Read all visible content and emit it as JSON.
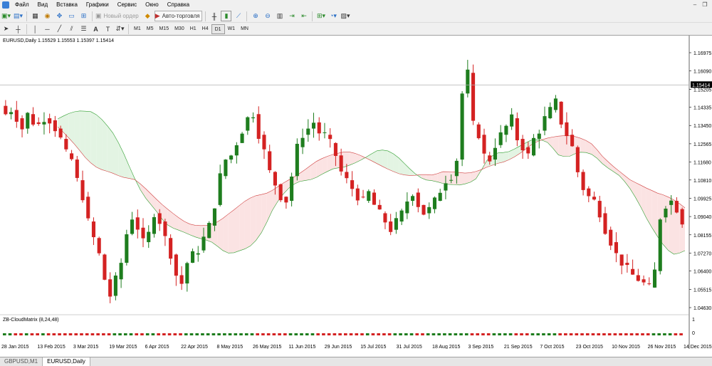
{
  "menu": [
    "Файл",
    "Вид",
    "Вставка",
    "Графики",
    "Сервис",
    "Окно",
    "Справка"
  ],
  "toolbar": {
    "new_order_label": "Новый ордер",
    "auto_trading_label": "Авто-торговля",
    "timeframes": [
      "M1",
      "M5",
      "M15",
      "M30",
      "H1",
      "H4",
      "D1",
      "W1",
      "MN"
    ],
    "active_timeframe": "D1"
  },
  "chart": {
    "symbol_header": "EURUSD,Daily  1.15529 1.15553 1.15397 1.15414",
    "current_price_label": "1.15414",
    "indicator_label": "ZB-CloudMatrix (8,24,48)",
    "indicator_scale_top": "1",
    "indicator_scale_bottom": "0",
    "colors": {
      "bull": "#1e7d1e",
      "bear": "#d42222",
      "cloud_green": "#2f9e2f",
      "cloud_red": "#d04040",
      "grid": "#e0e0e0"
    }
  },
  "chart_data": {
    "type": "candlestick",
    "title": "EURUSD,Daily",
    "ohlc_header": {
      "open": 1.15529,
      "high": 1.15553,
      "low": 1.15397,
      "close": 1.15414
    },
    "y_ticks": [
      1.16975,
      1.1609,
      1.15205,
      1.14335,
      1.1345,
      1.12565,
      1.1168,
      1.1081,
      1.09925,
      1.0904,
      1.08155,
      1.0727,
      1.064,
      1.05515,
      1.0463
    ],
    "x_ticks": [
      "28 Jan 2015",
      "13 Feb 2015",
      "3 Mar 2015",
      "19 Mar 2015",
      "6 Apr 2015",
      "22 Apr 2015",
      "8 May 2015",
      "26 May 2015",
      "11 Jun 2015",
      "29 Jun 2015",
      "15 Jul 2015",
      "31 Jul 2015",
      "18 Aug 2015",
      "3 Sep 2015",
      "21 Sep 2015",
      "7 Oct 2015",
      "23 Oct 2015",
      "10 Nov 2015",
      "26 Nov 2015",
      "14 Dec 2015"
    ],
    "close_path": [
      1.14,
      1.142,
      1.138,
      1.133,
      1.14,
      1.136,
      1.135,
      1.138,
      1.137,
      1.133,
      1.128,
      1.121,
      1.118,
      1.108,
      1.1,
      1.088,
      1.08,
      1.072,
      1.06,
      1.052,
      1.06,
      1.068,
      1.082,
      1.09,
      1.085,
      1.078,
      1.082,
      1.092,
      1.088,
      1.08,
      1.072,
      1.062,
      1.058,
      1.068,
      1.072,
      1.074,
      1.08,
      1.086,
      1.096,
      1.11,
      1.118,
      1.12,
      1.126,
      1.132,
      1.138,
      1.14,
      1.13,
      1.122,
      1.112,
      1.106,
      1.1,
      1.098,
      1.11,
      1.124,
      1.13,
      1.133,
      1.136,
      1.131,
      1.13,
      1.126,
      1.12,
      1.112,
      1.108,
      1.104,
      1.1,
      1.098,
      1.102,
      1.096,
      1.092,
      1.088,
      1.084,
      1.088,
      1.092,
      1.098,
      1.102,
      1.096,
      1.092,
      1.094,
      1.098,
      1.103,
      1.108,
      1.11,
      1.118,
      1.15,
      1.16,
      1.135,
      1.13,
      1.12,
      1.118,
      1.125,
      1.13,
      1.134,
      1.138,
      1.128,
      1.124,
      1.12,
      1.128,
      1.132,
      1.138,
      1.142,
      1.146,
      1.136,
      1.13,
      1.124,
      1.112,
      1.104,
      1.1,
      1.098,
      1.092,
      1.084,
      1.078,
      1.072,
      1.068,
      1.065,
      1.062,
      1.06,
      1.058,
      1.056,
      1.064,
      1.09,
      1.096,
      1.098,
      1.094,
      1.088
    ]
  },
  "tabs": [
    "GBPUSD,M1",
    "EURUSD,Daily"
  ],
  "active_tab": "EURUSD,Daily"
}
